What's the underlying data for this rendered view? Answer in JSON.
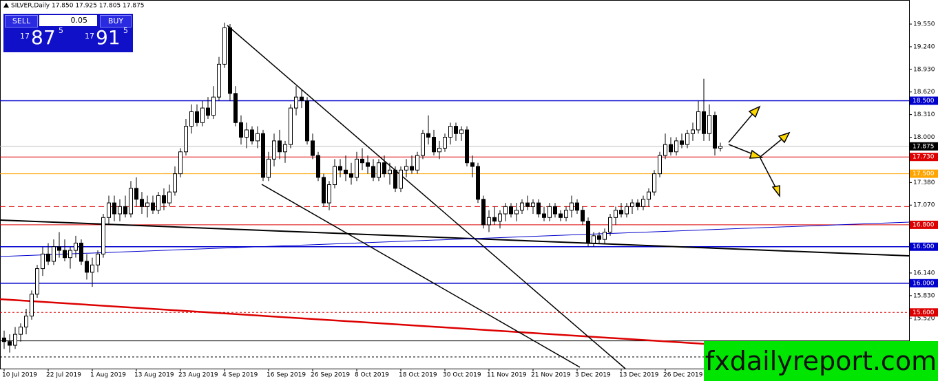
{
  "chart_data": {
    "type": "candlestick",
    "title": "SILVER,Daily 17.850 17.925 17.805 17.875",
    "categories": [
      "10 Jul 2019",
      null,
      null,
      null,
      null,
      null,
      null,
      null,
      "22 Jul 2019",
      null,
      null,
      null,
      null,
      null,
      null,
      null,
      "1 Aug 2019",
      null,
      null,
      null,
      null,
      null,
      null,
      null,
      "13 Aug 2019",
      null,
      null,
      null,
      null,
      null,
      null,
      null,
      "23 Aug 2019",
      null,
      null,
      null,
      null,
      null,
      null,
      null,
      "4 Sep 2019",
      null,
      null,
      null,
      null,
      null,
      null,
      null,
      "16 Sep 2019",
      null,
      null,
      null,
      null,
      null,
      null,
      null,
      "26 Sep 2019",
      null,
      null,
      null,
      null,
      null,
      null,
      null,
      "8 Oct 2019",
      null,
      null,
      null,
      null,
      null,
      null,
      null,
      "18 Oct 2019",
      null,
      null,
      null,
      null,
      null,
      null,
      null,
      "30 Oct 2019",
      null,
      null,
      null,
      null,
      null,
      null,
      null,
      "11 Nov 2019",
      null,
      null,
      null,
      null,
      null,
      null,
      null,
      "21 Nov 2019",
      null,
      null,
      null,
      null,
      null,
      null,
      null,
      "3 Dec 2019",
      null,
      null,
      null,
      null,
      null,
      null,
      null,
      "13 Dec 2019",
      null,
      null,
      null,
      null,
      null,
      null,
      null,
      "26 Dec 2019",
      null,
      null,
      null,
      null,
      null,
      null,
      null,
      null,
      null,
      null
    ],
    "ohlc": [
      [
        15.25,
        15.35,
        15.1,
        15.2
      ],
      [
        15.2,
        15.3,
        15.05,
        15.15
      ],
      [
        15.15,
        15.4,
        15.1,
        15.3
      ],
      [
        15.3,
        15.45,
        15.2,
        15.4
      ],
      [
        15.4,
        15.65,
        15.3,
        15.55
      ],
      [
        15.55,
        15.9,
        15.5,
        15.85
      ],
      [
        15.85,
        16.25,
        15.8,
        16.2
      ],
      [
        16.2,
        16.5,
        16.1,
        16.4
      ],
      [
        16.4,
        16.55,
        16.25,
        16.3
      ],
      [
        16.3,
        16.6,
        16.25,
        16.5
      ],
      [
        16.5,
        16.7,
        16.35,
        16.45
      ],
      [
        16.45,
        16.6,
        16.3,
        16.35
      ],
      [
        16.35,
        16.5,
        16.2,
        16.45
      ],
      [
        16.45,
        16.65,
        16.35,
        16.55
      ],
      [
        16.55,
        16.6,
        16.25,
        16.3
      ],
      [
        16.3,
        16.4,
        16.05,
        16.15
      ],
      [
        16.15,
        16.35,
        15.95,
        16.25
      ],
      [
        16.25,
        16.45,
        16.15,
        16.4
      ],
      [
        16.4,
        16.95,
        16.35,
        16.9
      ],
      [
        16.9,
        17.2,
        16.8,
        17.1
      ],
      [
        17.1,
        17.2,
        16.85,
        16.95
      ],
      [
        16.95,
        17.15,
        16.85,
        17.05
      ],
      [
        17.05,
        17.2,
        16.9,
        16.95
      ],
      [
        16.95,
        17.4,
        16.9,
        17.3
      ],
      [
        17.3,
        17.45,
        17.05,
        17.15
      ],
      [
        17.15,
        17.25,
        16.95,
        17.05
      ],
      [
        17.05,
        17.2,
        16.9,
        17.1
      ],
      [
        17.1,
        17.2,
        16.95,
        17.0
      ],
      [
        17.0,
        17.25,
        16.95,
        17.2
      ],
      [
        17.2,
        17.3,
        17.0,
        17.1
      ],
      [
        17.1,
        17.35,
        17.05,
        17.25
      ],
      [
        17.25,
        17.6,
        17.2,
        17.5
      ],
      [
        17.5,
        17.85,
        17.45,
        17.8
      ],
      [
        17.8,
        18.25,
        17.75,
        18.15
      ],
      [
        18.15,
        18.45,
        18.05,
        18.35
      ],
      [
        18.35,
        18.45,
        18.15,
        18.2
      ],
      [
        18.2,
        18.5,
        18.15,
        18.4
      ],
      [
        18.4,
        18.55,
        18.25,
        18.3
      ],
      [
        18.3,
        18.7,
        18.25,
        18.55
      ],
      [
        18.55,
        19.1,
        18.5,
        19.0
      ],
      [
        19.0,
        19.57,
        18.95,
        19.5
      ],
      [
        19.5,
        19.55,
        18.5,
        18.6
      ],
      [
        18.6,
        18.7,
        18.15,
        18.2
      ],
      [
        18.2,
        18.3,
        17.9,
        18.0
      ],
      [
        18.0,
        18.2,
        17.85,
        18.1
      ],
      [
        18.1,
        18.15,
        17.9,
        17.95
      ],
      [
        17.95,
        18.15,
        17.85,
        18.05
      ],
      [
        18.05,
        18.1,
        17.4,
        17.45
      ],
      [
        17.45,
        17.8,
        17.4,
        17.7
      ],
      [
        17.7,
        18.05,
        17.6,
        17.95
      ],
      [
        17.95,
        18.1,
        17.7,
        17.8
      ],
      [
        17.8,
        17.95,
        17.65,
        17.9
      ],
      [
        17.9,
        18.45,
        17.85,
        18.4
      ],
      [
        18.4,
        18.7,
        18.3,
        18.55
      ],
      [
        18.55,
        18.65,
        18.4,
        18.5
      ],
      [
        18.5,
        18.55,
        17.9,
        17.95
      ],
      [
        17.95,
        18.05,
        17.7,
        17.75
      ],
      [
        17.75,
        17.8,
        17.4,
        17.45
      ],
      [
        17.45,
        17.5,
        17.05,
        17.1
      ],
      [
        17.1,
        17.4,
        17.0,
        17.35
      ],
      [
        17.35,
        17.7,
        17.3,
        17.6
      ],
      [
        17.6,
        17.7,
        17.45,
        17.55
      ],
      [
        17.55,
        17.75,
        17.4,
        17.5
      ],
      [
        17.5,
        17.65,
        17.35,
        17.45
      ],
      [
        17.45,
        17.8,
        17.4,
        17.7
      ],
      [
        17.7,
        17.85,
        17.55,
        17.65
      ],
      [
        17.65,
        17.75,
        17.5,
        17.6
      ],
      [
        17.6,
        17.7,
        17.4,
        17.45
      ],
      [
        17.45,
        17.7,
        17.4,
        17.65
      ],
      [
        17.65,
        17.75,
        17.45,
        17.5
      ],
      [
        17.5,
        17.65,
        17.35,
        17.55
      ],
      [
        17.55,
        17.6,
        17.25,
        17.3
      ],
      [
        17.3,
        17.6,
        17.25,
        17.55
      ],
      [
        17.55,
        17.7,
        17.45,
        17.6
      ],
      [
        17.6,
        17.75,
        17.5,
        17.55
      ],
      [
        17.55,
        17.8,
        17.5,
        17.75
      ],
      [
        17.75,
        18.1,
        17.7,
        18.05
      ],
      [
        18.05,
        18.3,
        17.9,
        18.0
      ],
      [
        18.0,
        18.1,
        17.75,
        17.8
      ],
      [
        17.8,
        17.95,
        17.7,
        17.85
      ],
      [
        17.85,
        18.05,
        17.8,
        18.0
      ],
      [
        18.0,
        18.2,
        17.9,
        18.15
      ],
      [
        18.15,
        18.2,
        17.95,
        18.05
      ],
      [
        18.05,
        18.15,
        17.95,
        18.1
      ],
      [
        18.1,
        18.15,
        17.6,
        17.65
      ],
      [
        17.65,
        17.75,
        17.45,
        17.6
      ],
      [
        17.6,
        17.65,
        17.1,
        17.15
      ],
      [
        17.15,
        17.2,
        16.75,
        16.8
      ],
      [
        16.8,
        17.0,
        16.7,
        16.9
      ],
      [
        16.9,
        17.05,
        16.8,
        16.85
      ],
      [
        16.85,
        17.0,
        16.75,
        16.95
      ],
      [
        16.95,
        17.1,
        16.85,
        17.05
      ],
      [
        17.05,
        17.1,
        16.9,
        16.95
      ],
      [
        16.95,
        17.1,
        16.85,
        17.0
      ],
      [
        17.0,
        17.15,
        16.95,
        17.1
      ],
      [
        17.1,
        17.2,
        17.0,
        17.05
      ],
      [
        17.05,
        17.15,
        16.95,
        17.1
      ],
      [
        17.1,
        17.15,
        16.9,
        16.95
      ],
      [
        16.95,
        17.05,
        16.85,
        16.9
      ],
      [
        16.9,
        17.1,
        16.85,
        17.05
      ],
      [
        17.05,
        17.1,
        16.9,
        16.95
      ],
      [
        16.95,
        17.0,
        16.85,
        16.9
      ],
      [
        16.9,
        17.05,
        16.85,
        17.0
      ],
      [
        17.0,
        17.2,
        16.9,
        17.1
      ],
      [
        17.1,
        17.15,
        16.95,
        17.0
      ],
      [
        17.0,
        17.05,
        16.8,
        16.85
      ],
      [
        16.85,
        16.9,
        16.5,
        16.55
      ],
      [
        16.55,
        16.7,
        16.5,
        16.65
      ],
      [
        16.65,
        16.7,
        16.55,
        16.6
      ],
      [
        16.6,
        16.75,
        16.55,
        16.7
      ],
      [
        16.7,
        16.95,
        16.65,
        16.9
      ],
      [
        16.9,
        17.05,
        16.8,
        17.0
      ],
      [
        17.0,
        17.1,
        16.9,
        16.95
      ],
      [
        16.95,
        17.1,
        16.9,
        17.05
      ],
      [
        17.05,
        17.15,
        16.95,
        17.1
      ],
      [
        17.1,
        17.15,
        17.0,
        17.05
      ],
      [
        17.05,
        17.2,
        17.0,
        17.15
      ],
      [
        17.15,
        17.3,
        17.05,
        17.25
      ],
      [
        17.25,
        17.55,
        17.2,
        17.5
      ],
      [
        17.5,
        17.8,
        17.45,
        17.75
      ],
      [
        17.75,
        18.05,
        17.7,
        17.9
      ],
      [
        17.9,
        18.0,
        17.75,
        17.8
      ],
      [
        17.8,
        18.0,
        17.75,
        17.95
      ],
      [
        17.95,
        18.05,
        17.85,
        17.9
      ],
      [
        17.9,
        18.1,
        17.85,
        18.05
      ],
      [
        18.05,
        18.2,
        17.95,
        18.1
      ],
      [
        18.1,
        18.5,
        18.05,
        18.35
      ],
      [
        18.35,
        18.8,
        17.95,
        18.05
      ],
      [
        18.05,
        18.45,
        17.95,
        18.3
      ],
      [
        18.3,
        18.35,
        17.75,
        17.85
      ],
      [
        17.85,
        17.925,
        17.805,
        17.875
      ]
    ],
    "ylim": [
      14.83,
      19.88
    ],
    "yticks": [
      {
        "value": 19.55,
        "label": "19.550"
      },
      {
        "value": 19.24,
        "label": "19.240"
      },
      {
        "value": 18.93,
        "label": "18.930"
      },
      {
        "value": 18.62,
        "label": "18.620"
      },
      {
        "value": 18.31,
        "label": "18.310"
      },
      {
        "value": 18.0,
        "label": "18.000"
      },
      {
        "value": 17.38,
        "label": "17.380"
      },
      {
        "value": 17.07,
        "label": "17.070"
      },
      {
        "value": 16.14,
        "label": "16.140"
      },
      {
        "value": 15.83,
        "label": "15.830"
      },
      {
        "value": 15.52,
        "label": "15.520"
      }
    ],
    "levels": [
      {
        "value": 18.5,
        "label": "18.500",
        "color": "#0000cc"
      },
      {
        "value": 17.875,
        "label": "17.875",
        "color": "#000000",
        "line_color": "#c0c0c0"
      },
      {
        "value": 17.73,
        "label": "17.730",
        "color": "#dd0000"
      },
      {
        "value": 17.5,
        "label": "17.500",
        "color": "#ffa500"
      },
      {
        "value": 17.05,
        "color": "#dd0000",
        "dash": "8,5"
      },
      {
        "value": 16.8,
        "label": "16.800",
        "color": "#dd0000"
      },
      {
        "value": 16.5,
        "label": "16.500",
        "color": "#0000cc"
      },
      {
        "value": 16.0,
        "label": "16.000",
        "color": "#0000cc"
      },
      {
        "value": 15.6,
        "label": "15.600",
        "color": "#dd0000",
        "dash": "3,3"
      },
      {
        "value": 15.21,
        "color": "#000000"
      },
      {
        "value": 14.99,
        "color": "#000000",
        "dash": "3,3"
      }
    ],
    "up_color": "#ffffff",
    "down_color": "#000000"
  },
  "trade_panel": {
    "sell": "SELL",
    "buy": "BUY",
    "lot": "0.05",
    "bid": {
      "big": "17",
      "main": "87",
      "sup": "5"
    },
    "ask": {
      "big": "17",
      "main": "91",
      "sup": "5"
    }
  },
  "watermark": "fxdailyreport.com"
}
